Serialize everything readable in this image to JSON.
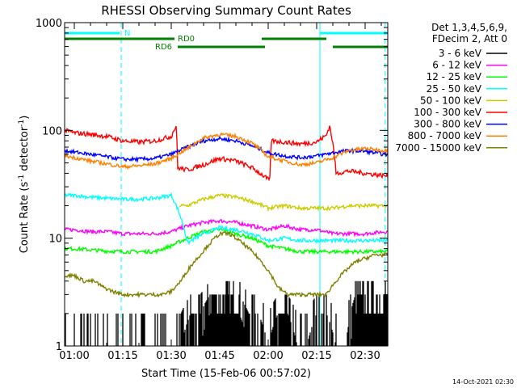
{
  "chart_data": {
    "type": "line",
    "title": "RHESSI Observing Summary Count Rates",
    "xlabel": "Start Time (15-Feb-06 00:57:02)",
    "ylabel_main": "Count Rate (s",
    "ylabel_sup1": "-1",
    "ylabel_mid": " detector",
    "ylabel_sup2": "-1",
    "ylabel_end": ")",
    "y_scale": "log",
    "xlim_minutes": [
      57,
      157
    ],
    "ylim": [
      1,
      1000
    ],
    "x_ticks": [
      {
        "label": "01:00",
        "min": 60
      },
      {
        "label": "01:15",
        "min": 75
      },
      {
        "label": "01:30",
        "min": 90
      },
      {
        "label": "01:45",
        "min": 105
      },
      {
        "label": "02:00",
        "min": 120
      },
      {
        "label": "02:15",
        "min": 135
      },
      {
        "label": "02:30",
        "min": 150
      }
    ],
    "y_ticks": [
      {
        "label": "1",
        "value": 1
      },
      {
        "label": "10",
        "value": 10
      },
      {
        "label": "100",
        "value": 100
      },
      {
        "label": "1000",
        "value": 1000
      }
    ],
    "legend_position": "top-right",
    "legend_header": [
      "Det 1,3,4,5,6,9,",
      "FDecim 2, Att 0"
    ],
    "series": [
      {
        "name": "3 - 6 keV",
        "color": "#000000",
        "mode": "counts",
        "x": [
          57,
          60,
          63,
          66,
          69,
          72,
          75,
          78,
          81,
          84,
          87,
          90,
          93,
          96,
          99,
          102,
          105,
          108,
          111,
          114,
          117,
          120,
          123,
          126,
          129,
          132,
          135,
          138,
          141,
          144,
          147,
          150,
          153,
          156
        ],
        "y": [
          1,
          1,
          1,
          1,
          1,
          1,
          1,
          1,
          1,
          1,
          1,
          1,
          1,
          2,
          2,
          3,
          3,
          3,
          3,
          2,
          2,
          1,
          2,
          2,
          1,
          1,
          2,
          2,
          1,
          1,
          3,
          3,
          3,
          3
        ]
      },
      {
        "name": "6 - 12 keV",
        "color": "#ff00ff",
        "x": [
          57,
          60,
          65,
          70,
          75,
          80,
          85,
          90,
          95,
          100,
          105,
          110,
          115,
          120,
          125,
          130,
          135,
          140,
          145,
          150,
          156
        ],
        "y": [
          12,
          12,
          11.5,
          11.5,
          11,
          11,
          11,
          11.5,
          13,
          14,
          14.5,
          14,
          13,
          12,
          13,
          12,
          12,
          11,
          11,
          11,
          11.5
        ]
      },
      {
        "name": "12 - 25 keV",
        "color": "#00ff00",
        "x": [
          57,
          60,
          65,
          70,
          75,
          80,
          85,
          90,
          95,
          100,
          105,
          110,
          115,
          120,
          125,
          130,
          135,
          140,
          145,
          150,
          156
        ],
        "y": [
          8,
          8,
          7.8,
          7.6,
          7.5,
          7.5,
          7.5,
          8.5,
          10,
          11.5,
          12,
          11,
          10,
          8.5,
          8,
          7.5,
          7.5,
          7.5,
          7.5,
          7.5,
          7.5
        ]
      },
      {
        "name": "25 - 50 keV",
        "color": "#00ffff",
        "x": [
          57,
          60,
          65,
          70,
          75,
          80,
          85,
          90,
          95,
          100,
          105,
          110,
          115,
          120,
          125,
          130,
          135,
          140,
          145,
          150,
          156
        ],
        "y": [
          25,
          25,
          24,
          23.5,
          23,
          23,
          23.5,
          25,
          9,
          11,
          12.5,
          12,
          11,
          9.5,
          10,
          9.5,
          9.5,
          9.5,
          9.5,
          9.5,
          9.5
        ]
      },
      {
        "name": "50 - 100 keV",
        "color": "#cccc00",
        "x": [
          57,
          60,
          65,
          70,
          75,
          80,
          85,
          90,
          95,
          100,
          105,
          110,
          115,
          120,
          125,
          130,
          135,
          140,
          145,
          150,
          156
        ],
        "y": [
          null,
          null,
          null,
          null,
          null,
          null,
          null,
          null,
          20,
          23,
          25,
          24,
          22,
          19,
          20,
          19,
          19,
          19,
          20,
          20,
          20
        ]
      },
      {
        "name": "100 - 300 keV",
        "color": "#ff0000",
        "x": [
          57,
          60,
          65,
          70,
          75,
          80,
          85,
          90,
          91.5,
          92,
          95,
          100,
          105,
          110,
          115,
          120,
          120.5,
          121,
          125,
          130,
          135,
          138,
          139,
          141,
          145,
          150,
          156
        ],
        "y": [
          100,
          95,
          92,
          88,
          80,
          78,
          80,
          88,
          110,
          45,
          43,
          48,
          55,
          52,
          45,
          35,
          35,
          80,
          78,
          75,
          78,
          90,
          110,
          40,
          42,
          40,
          38
        ]
      },
      {
        "name": "300 - 800 keV",
        "color": "#0000ff",
        "x": [
          57,
          60,
          65,
          70,
          75,
          80,
          85,
          90,
          95,
          100,
          105,
          110,
          115,
          120,
          125,
          130,
          135,
          140,
          145,
          150,
          156
        ],
        "y": [
          65,
          63,
          60,
          57,
          54,
          54,
          55,
          60,
          70,
          80,
          84,
          80,
          72,
          62,
          58,
          56,
          58,
          62,
          65,
          64,
          60
        ]
      },
      {
        "name": "800 - 7000 keV",
        "color": "#ff8000",
        "x": [
          57,
          60,
          65,
          70,
          75,
          80,
          85,
          90,
          95,
          100,
          105,
          110,
          115,
          120,
          125,
          130,
          135,
          140,
          145,
          150,
          156
        ],
        "y": [
          58,
          56,
          52,
          49,
          46,
          47,
          49,
          55,
          68,
          85,
          92,
          88,
          76,
          57,
          52,
          48,
          50,
          56,
          65,
          68,
          65
        ]
      },
      {
        "name": "7000 - 15000 keV",
        "color": "#808000",
        "x": [
          57,
          60,
          63,
          66,
          69,
          72,
          75,
          78,
          81,
          84,
          87,
          90,
          93,
          96,
          99,
          102,
          105,
          108,
          111,
          114,
          117,
          120,
          123,
          126,
          129,
          132,
          135,
          138,
          141,
          144,
          147,
          150,
          153,
          156
        ],
        "y": [
          4.5,
          4.5,
          4,
          4,
          3.5,
          3.2,
          3,
          3,
          3,
          3,
          3,
          3.2,
          4,
          5.5,
          7,
          9,
          11,
          11,
          9.5,
          8,
          6.5,
          5,
          3.5,
          3,
          3,
          3,
          3,
          3,
          4,
          5,
          6,
          6.5,
          7,
          7
        ]
      }
    ],
    "annotations": [
      {
        "label": "N",
        "color": "#00ffff",
        "segments": [
          [
            57,
            74
          ],
          [
            136,
            157
          ]
        ]
      },
      {
        "label": "RD0",
        "color": "#008000",
        "segments": [
          [
            57,
            91
          ],
          [
            118,
            138
          ]
        ]
      },
      {
        "label": "RD6",
        "color": "#008000",
        "segments": [
          [
            92,
            119
          ],
          [
            140,
            157
          ]
        ]
      }
    ],
    "event_lines": [
      {
        "color": "#00ffff",
        "style": "solid",
        "min": 57
      },
      {
        "color": "#00ffff",
        "style": "dashed",
        "min": 74.5
      },
      {
        "color": "#00ffff",
        "style": "solid",
        "min": 136
      },
      {
        "color": "#00ffff",
        "style": "dashed",
        "min": 156.2
      }
    ]
  },
  "footer_date": "14-Oct-2021 02:30"
}
